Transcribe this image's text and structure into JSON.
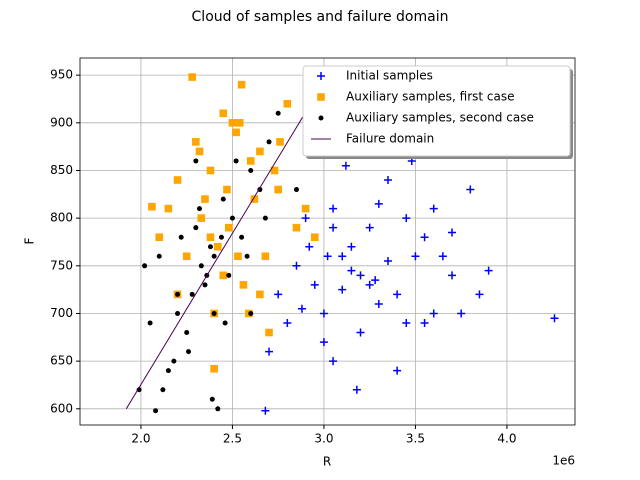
{
  "chart_data": {
    "type": "scatter",
    "title": "Cloud of samples and failure domain",
    "xlabel": "R",
    "ylabel": "F",
    "x_offset_label": "1e6",
    "xlim": [
      1667000,
      4372000
    ],
    "ylim": [
      583,
      968
    ],
    "xticks": [
      {
        "value": 2000000,
        "label": "2.0"
      },
      {
        "value": 2500000,
        "label": "2.5"
      },
      {
        "value": 3000000,
        "label": "3.0"
      },
      {
        "value": 3500000,
        "label": "3.5"
      },
      {
        "value": 4000000,
        "label": "4.0"
      }
    ],
    "yticks": [
      600,
      650,
      700,
      750,
      800,
      850,
      900,
      950
    ],
    "grid": true,
    "legend": "upper right",
    "series": [
      {
        "name": "Initial samples",
        "color": "#0000ff",
        "style": "plus",
        "x": [
          3100000,
          3250000,
          2950000,
          3400000,
          3050000,
          3600000,
          3200000,
          2850000,
          3350000,
          3150000,
          3500000,
          3000000,
          3700000,
          3300000,
          2900000,
          3450000,
          3800000,
          3050000,
          3250000,
          2750000,
          3550000,
          3150000,
          2980000,
          3650000,
          3400000,
          3100000,
          3900000,
          2680000,
          4260000,
          3020000,
          3300000,
          2800000,
          3750000,
          3180000,
          3480000,
          2920000,
          3600000,
          3250000,
          3120000,
          3350000,
          2700000,
          3850000,
          3000000,
          3450000,
          3200000,
          2880000,
          3550000,
          3050000,
          3700000,
          3280000
        ],
        "y": [
          760,
          790,
          730,
          720,
          810,
          700,
          680,
          750,
          840,
          770,
          760,
          700,
          740,
          710,
          800,
          690,
          830,
          650,
          870,
          720,
          780,
          745,
          885,
          760,
          640,
          725,
          745,
          598,
          695,
          760,
          815,
          690,
          700,
          620,
          860,
          770,
          810,
          730,
          855,
          755,
          660,
          720,
          670,
          800,
          740,
          705,
          690,
          790,
          785,
          735
        ]
      },
      {
        "name": "Auxiliary samples, first case",
        "color": "#ffa500",
        "style": "square",
        "x": [
          2280000,
          2400000,
          2550000,
          2300000,
          2450000,
          2650000,
          2200000,
          2500000,
          2350000,
          2600000,
          2750000,
          2150000,
          2420000,
          2520000,
          2700000,
          2250000,
          2380000,
          2480000,
          2620000,
          2800000,
          2100000,
          2330000,
          2560000,
          2450000,
          2680000,
          2900000,
          2200000,
          2400000,
          2530000,
          2760000,
          2320000,
          2470000,
          2850000,
          2590000,
          2950000,
          2060000,
          2650000,
          2380000,
          2540000,
          2730000
        ],
        "y": [
          948,
          642,
          940,
          880,
          910,
          870,
          840,
          900,
          820,
          860,
          830,
          810,
          770,
          890,
          680,
          760,
          850,
          790,
          820,
          920,
          780,
          800,
          730,
          740,
          760,
          810,
          720,
          700,
          760,
          880,
          870,
          830,
          790,
          700,
          780,
          812,
          720,
          780,
          900,
          850
        ]
      },
      {
        "name": "Auxiliary samples, second case",
        "color": "#000000",
        "style": "dot",
        "x": [
          2100000,
          2300000,
          2450000,
          2200000,
          2400000,
          2600000,
          2050000,
          2350000,
          2500000,
          2250000,
          2700000,
          1990000,
          2150000,
          2380000,
          2550000,
          2420000,
          2280000,
          2650000,
          2180000,
          2480000,
          2320000,
          2080000,
          2580000,
          2750000,
          2220000,
          2400000,
          2120000,
          2330000,
          2520000,
          2850000,
          2260000,
          2440000,
          2360000,
          2200000,
          2600000,
          2020000,
          2300000,
          2460000,
          2680000,
          2390000
        ],
        "y": [
          760,
          790,
          820,
          700,
          760,
          850,
          690,
          730,
          800,
          680,
          880,
          620,
          640,
          770,
          780,
          600,
          720,
          830,
          650,
          740,
          810,
          598,
          760,
          910,
          780,
          700,
          620,
          750,
          860,
          830,
          660,
          780,
          740,
          720,
          700,
          750,
          860,
          690,
          800,
          610
        ]
      },
      {
        "name": "Failure domain",
        "color": "#4b0050",
        "style": "line",
        "x": [
          1920000,
          2890000
        ],
        "y": [
          600,
          908
        ]
      }
    ]
  }
}
